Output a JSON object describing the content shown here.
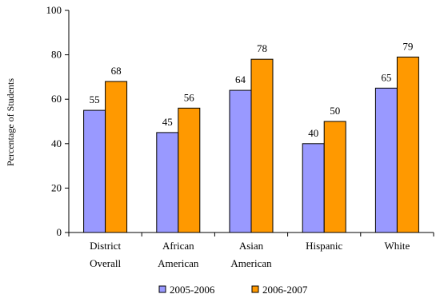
{
  "chart_data": {
    "type": "bar",
    "title": "",
    "xlabel": "",
    "ylabel": "Percentage of Students",
    "ylim": [
      0,
      100
    ],
    "yticks": [
      0,
      20,
      40,
      60,
      80,
      100
    ],
    "grid": false,
    "legend_position": "bottom",
    "categories": [
      [
        "District",
        "Overall"
      ],
      [
        "African",
        "American"
      ],
      [
        "Asian",
        "American"
      ],
      [
        "Hispanic"
      ],
      [
        "White"
      ]
    ],
    "series": [
      {
        "name": "2005-2006",
        "color": "#9999ff",
        "values": [
          55,
          45,
          64,
          40,
          65
        ]
      },
      {
        "name": "2006-2007",
        "color": "#ff9900",
        "values": [
          68,
          56,
          78,
          50,
          79
        ]
      }
    ]
  }
}
